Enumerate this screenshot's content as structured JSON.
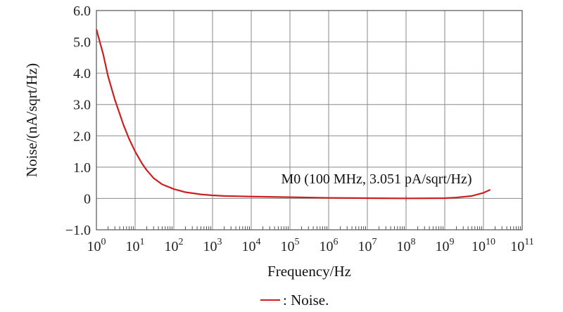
{
  "chart_data": {
    "type": "line",
    "xlabel": "Frequency/Hz",
    "ylabel": "Noise/(nA/sqrt/Hz)",
    "xscale": "log",
    "xlim": [
      1,
      100000000000
    ],
    "ylim": [
      -1.0,
      6.0
    ],
    "grid": true,
    "x_ticks": [
      {
        "exp": "0",
        "value": 1
      },
      {
        "exp": "1",
        "value": 10
      },
      {
        "exp": "2",
        "value": 100
      },
      {
        "exp": "3",
        "value": 1000
      },
      {
        "exp": "4",
        "value": 10000
      },
      {
        "exp": "5",
        "value": 100000
      },
      {
        "exp": "6",
        "value": 1000000
      },
      {
        "exp": "7",
        "value": 10000000
      },
      {
        "exp": "8",
        "value": 100000000
      },
      {
        "exp": "9",
        "value": 1000000000
      },
      {
        "exp": "10",
        "value": 10000000000
      },
      {
        "exp": "11",
        "value": 100000000000
      }
    ],
    "y_ticks": [
      {
        "label": "6.0",
        "value": 6.0
      },
      {
        "label": "5.0",
        "value": 5.0
      },
      {
        "label": "4.0",
        "value": 4.0
      },
      {
        "label": "3.0",
        "value": 3.0
      },
      {
        "label": "2.0",
        "value": 2.0
      },
      {
        "label": "1.0",
        "value": 1.0
      },
      {
        "label": "0",
        "value": 0.0
      },
      {
        "label": "−1.0",
        "value": -1.0
      }
    ],
    "series": [
      {
        "name": "Noise.",
        "color": "#cc1f1f",
        "x": [
          1,
          1.5,
          2,
          3,
          5,
          7,
          10,
          15,
          20,
          30,
          50,
          100,
          200,
          500,
          1000,
          2000,
          5000,
          10000,
          100000,
          1000000,
          10000000,
          100000000,
          1000000000,
          2000000000,
          5000000000,
          10000000000,
          15000000000
        ],
        "y": [
          5.4,
          4.6,
          3.9,
          3.15,
          2.35,
          1.9,
          1.5,
          1.12,
          0.9,
          0.65,
          0.45,
          0.3,
          0.2,
          0.13,
          0.1,
          0.08,
          0.07,
          0.06,
          0.04,
          0.02,
          0.01,
          0.003,
          0.01,
          0.03,
          0.08,
          0.18,
          0.28
        ]
      }
    ],
    "annotations": [
      {
        "text": "M0 (100 MHz, 3.051 pA/sqrt/Hz)",
        "x": 100000000,
        "y": 0.003
      }
    ],
    "legend": {
      "position": "bottom-center",
      "label": ": Noise."
    }
  }
}
